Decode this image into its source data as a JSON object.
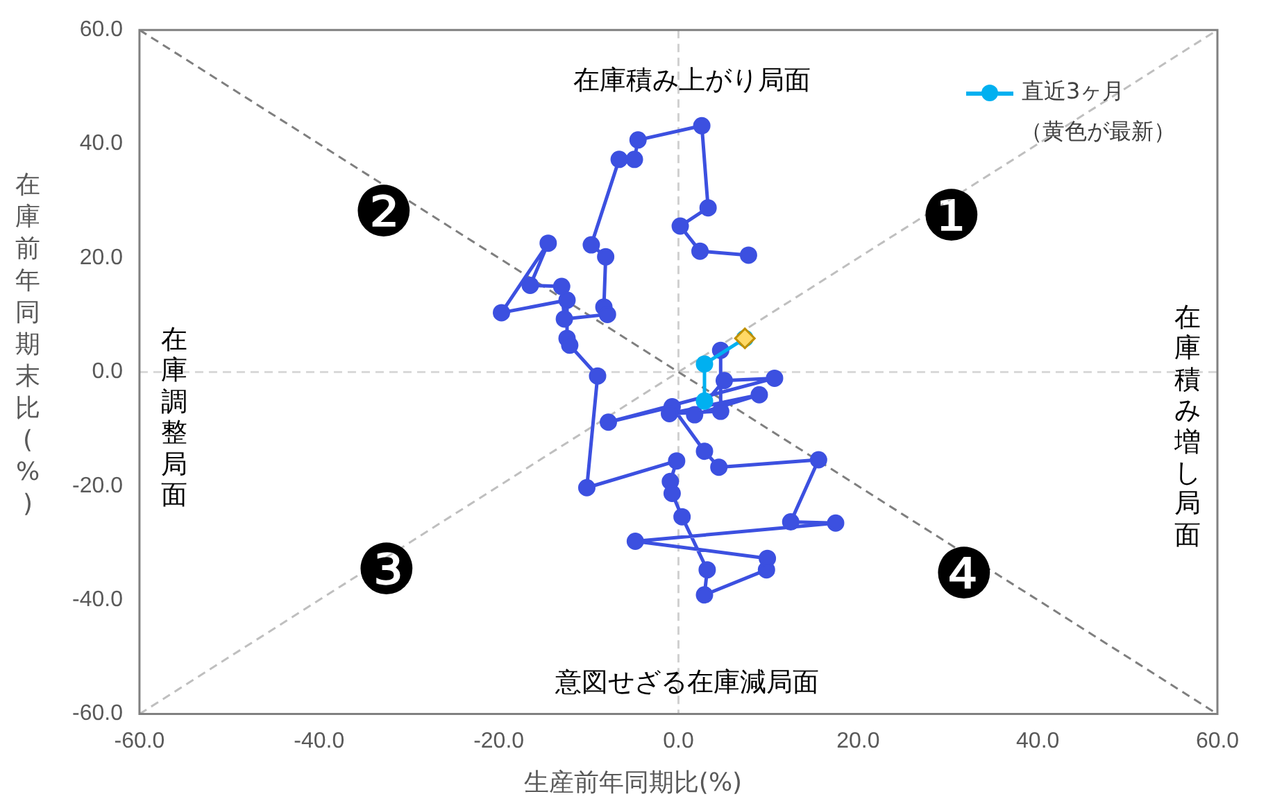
{
  "chart_data": {
    "type": "line",
    "xlabel": "生産前年同期比(%)",
    "ylabel": "在庫前年同期末比(%)",
    "xlim": [
      -60,
      60
    ],
    "ylim": [
      -60,
      60
    ],
    "xticks": [
      {
        "value": -60,
        "label": "-60.0"
      },
      {
        "value": -40,
        "label": "-40.0"
      },
      {
        "value": -20,
        "label": "-20.0"
      },
      {
        "value": 0,
        "label": "0.0"
      },
      {
        "value": 20,
        "label": "20.0"
      },
      {
        "value": 40,
        "label": "40.0"
      },
      {
        "value": 60,
        "label": "60.0"
      }
    ],
    "yticks": [
      {
        "value": -60,
        "label": "-60.0"
      },
      {
        "value": -40,
        "label": "-40.0"
      },
      {
        "value": -20,
        "label": "-20.0"
      },
      {
        "value": 0,
        "label": "0.0"
      },
      {
        "value": 20,
        "label": "20.0"
      },
      {
        "value": 40,
        "label": "40.0"
      },
      {
        "value": 60,
        "label": "60.0"
      }
    ],
    "grid": false,
    "legend": "top right",
    "marker": "circle",
    "ref_lines": [
      {
        "axis": "x",
        "value": 0,
        "color": "#d0d0d0",
        "line_style": "dashed"
      },
      {
        "axis": "y",
        "value": 0,
        "color": "#d9d9d9",
        "line_style": "dashed"
      }
    ],
    "series": [
      {
        "type": "line",
        "color": "#bfbfbf",
        "line_style": "dashed",
        "marker": "none",
        "x": [
          -60,
          60
        ],
        "values": [
          -60,
          60
        ]
      },
      {
        "type": "line",
        "color": "#7f7f7f",
        "line_style": "dashed",
        "marker": "none",
        "x": [
          -60,
          60
        ],
        "values": [
          60,
          -60
        ]
      },
      {
        "color": "#3c50e0",
        "x": [
          7.8,
          2.4,
          0.2,
          3.3,
          2.6,
          -4.5,
          -4.9,
          -6.6,
          -9.7,
          -8.1,
          -8.3,
          -7.9,
          -12.7,
          -13.0,
          -16.5,
          -14.5,
          -19.7,
          -12.4,
          -12.4,
          -12.1,
          -9.0,
          -10.2,
          -0.2,
          -0.9,
          -0.7,
          0.4,
          3.2,
          2.9,
          9.8,
          9.9,
          -4.8,
          17.5,
          12.5,
          15.6,
          4.5,
          2.9,
          -0.7,
          -7.8,
          10.7,
          5.1,
          1.8,
          9.0,
          -1.0,
          4.7,
          4.7
        ],
        "values": [
          20.5,
          21.2,
          25.6,
          28.8,
          43.2,
          40.7,
          37.3,
          37.3,
          22.3,
          20.2,
          11.4,
          10.1,
          9.3,
          15.0,
          15.2,
          22.6,
          10.4,
          12.6,
          5.9,
          4.7,
          -0.7,
          -20.3,
          -15.6,
          -19.2,
          -21.3,
          -25.4,
          -34.7,
          -39.1,
          -34.7,
          -32.7,
          -29.7,
          -26.5,
          -26.3,
          -15.4,
          -16.7,
          -13.9,
          -6.1,
          -8.8,
          -1.1,
          -1.5,
          -7.5,
          -4.0,
          -7.3,
          -6.9,
          3.8
        ]
      },
      {
        "name": "直近3ヶ月",
        "color": "#00b0f0",
        "x": [
          2.9,
          2.9,
          7.4
        ],
        "values": [
          -5.1,
          1.4,
          5.9
        ]
      },
      {
        "type": "scatter",
        "color": "#ffd966",
        "marker": "diamond",
        "x": [
          7.4
        ],
        "values": [
          5.9
        ]
      }
    ],
    "annotations": [
      "在庫積み上がり局面",
      "在庫積み増し局面",
      "意図せざる在庫減局面",
      "在庫調整局面",
      "（黄色が最新）",
      "❶",
      "❷",
      "❸",
      "❹"
    ]
  }
}
